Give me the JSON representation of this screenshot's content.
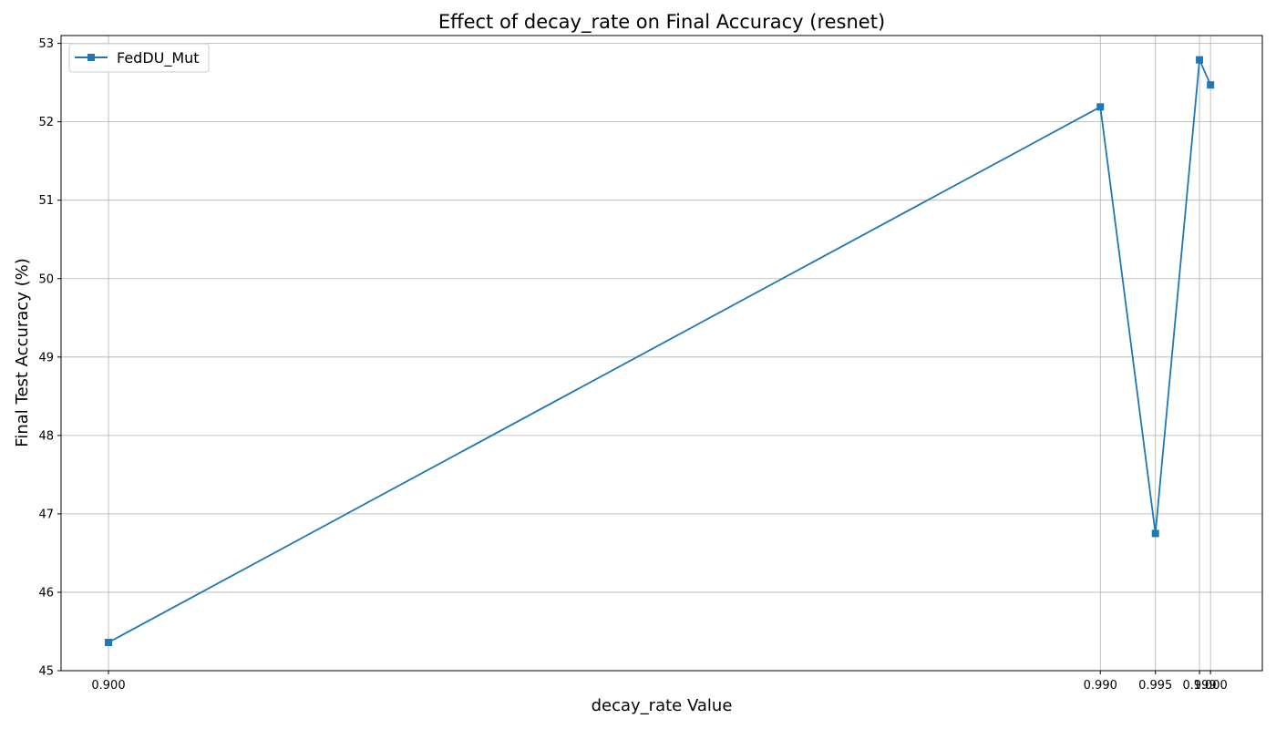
{
  "chart_data": {
    "type": "line",
    "title": "Effect of decay_rate on Final Accuracy (resnet)",
    "xlabel": "decay_rate Value",
    "ylabel": "Final Test Accuracy (%)",
    "xlim": [
      0.8957,
      1.0047
    ],
    "ylim": [
      45.0,
      53.1
    ],
    "x_ticks": [
      0.9,
      0.99,
      0.995,
      0.999,
      1.0
    ],
    "x_tick_labels": [
      "0.900",
      "0.990",
      "0.995",
      "0.999",
      "1.000"
    ],
    "y_ticks": [
      45,
      46,
      47,
      48,
      49,
      50,
      51,
      52,
      53
    ],
    "y_tick_labels": [
      "45",
      "46",
      "47",
      "48",
      "49",
      "50",
      "51",
      "52",
      "53"
    ],
    "grid": true,
    "legend_position": "top-left",
    "series": [
      {
        "name": "FedDU_Mut",
        "color": "#1f77b4",
        "marker": "square",
        "x": [
          0.9,
          0.99,
          0.995,
          0.999,
          1.0
        ],
        "y": [
          45.36,
          52.19,
          46.75,
          52.79,
          52.47
        ]
      }
    ]
  }
}
